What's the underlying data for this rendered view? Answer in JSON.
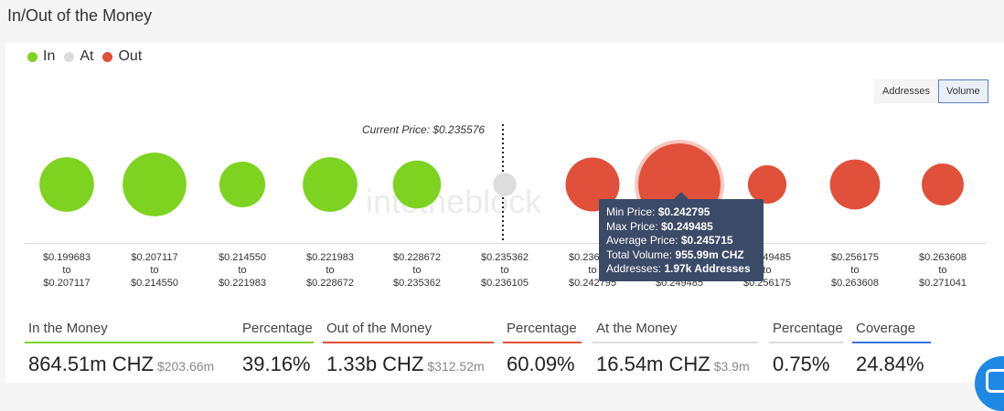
{
  "title": "In/Out of the Money",
  "legend": [
    {
      "label": "In",
      "color": "#7ed321"
    },
    {
      "label": "At",
      "color": "#dddddd"
    },
    {
      "label": "Out",
      "color": "#e0503a"
    }
  ],
  "toggle": {
    "addresses": "Addresses",
    "volume": "Volume"
  },
  "current_price": "Current Price: $0.235576",
  "watermark": "intotheblock",
  "ranges": [
    {
      "from": "$0.199683",
      "to": "$0.207117"
    },
    {
      "from": "$0.207117",
      "to": "$0.214550"
    },
    {
      "from": "$0.214550",
      "to": "$0.221983"
    },
    {
      "from": "$0.221983",
      "to": "$0.228672"
    },
    {
      "from": "$0.228672",
      "to": "$0.235362"
    },
    {
      "from": "$0.235362",
      "to": "$0.236105"
    },
    {
      "from": "$0.236105",
      "to": "$0.242795"
    },
    {
      "from": "$0.242795",
      "to": "$0.249485"
    },
    {
      "from": "$0.249485",
      "to": "$0.256175"
    },
    {
      "from": "$0.256175",
      "to": "$0.263608"
    },
    {
      "from": "$0.263608",
      "to": "$0.271041"
    }
  ],
  "sep": "to",
  "tooltip": {
    "min_label": "Min Price:",
    "min_value": "$0.242795",
    "max_label": "Max Price:",
    "max_value": "$0.249485",
    "avg_label": "Average Price:",
    "avg_value": "$0.245715",
    "vol_label": "Total Volume:",
    "vol_value": "955.99m CHZ",
    "addr_label": "Addresses:",
    "addr_value": "1.97k Addresses"
  },
  "stats": [
    {
      "label": "In the Money",
      "value": "864.51m CHZ",
      "sub": "$203.66m",
      "color": "#7ed321"
    },
    {
      "label": "Percentage",
      "value": "39.16%",
      "sub": "",
      "color": "#7ed321"
    },
    {
      "label": "Out of the Money",
      "value": "1.33b CHZ",
      "sub": "$312.52m",
      "color": "#e0503a"
    },
    {
      "label": "Percentage",
      "value": "60.09%",
      "sub": "",
      "color": "#e0503a"
    },
    {
      "label": "At the Money",
      "value": "16.54m CHZ",
      "sub": "$3.9m",
      "color": "#dddddd"
    },
    {
      "label": "Percentage",
      "value": "0.75%",
      "sub": "",
      "color": "#dddddd"
    },
    {
      "label": "Coverage",
      "value": "24.84%",
      "sub": "",
      "color": "#3a6fd8"
    }
  ],
  "chart_data": {
    "type": "scatter",
    "status": [
      "in",
      "in",
      "in",
      "in",
      "in",
      "at",
      "out",
      "out",
      "out",
      "out",
      "out"
    ],
    "relative_volume": [
      0.44,
      0.6,
      0.31,
      0.44,
      0.34,
      0.08,
      0.43,
      1.0,
      0.22,
      0.37,
      0.26
    ]
  }
}
